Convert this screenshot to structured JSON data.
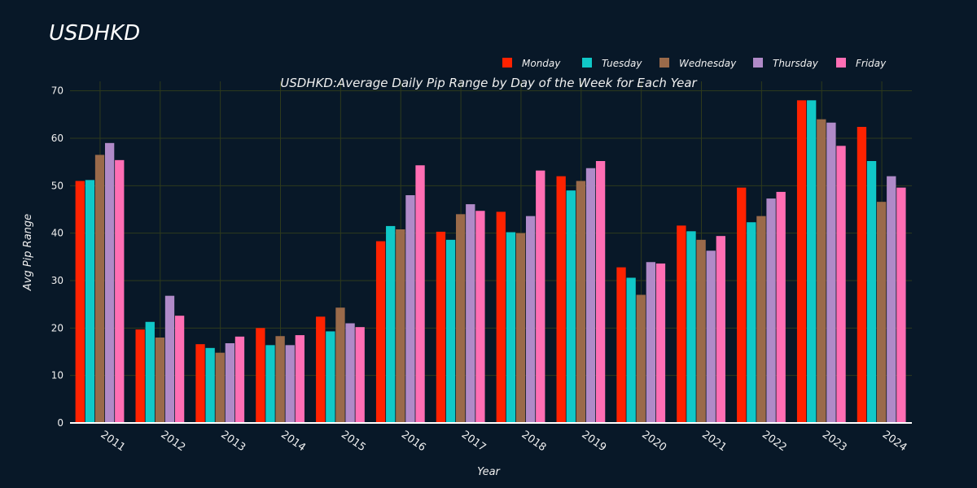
{
  "page": {
    "title": "USDHKD"
  },
  "colors": {
    "background": "#081828",
    "grid": "#2e3a1c",
    "axis_line": "#ffffff",
    "text": "#f0f0f0"
  },
  "chart_data": {
    "type": "bar",
    "title": "USDHKD:Average Daily Pip Range by Day of the Week for Each Year",
    "xlabel": "Year",
    "ylabel": "Avg Pip Range",
    "ylim": [
      0,
      72
    ],
    "yticks": [
      0,
      10,
      20,
      30,
      40,
      50,
      60,
      70
    ],
    "grid": true,
    "legend_position": "top-right",
    "categories": [
      "2011",
      "2012",
      "2013",
      "2014",
      "2015",
      "2016",
      "2017",
      "2018",
      "2019",
      "2020",
      "2021",
      "2022",
      "2023",
      "2024"
    ],
    "series": [
      {
        "name": "Monday",
        "color": "#ff2200",
        "values": [
          51.0,
          19.7,
          16.6,
          20.0,
          22.4,
          38.3,
          40.3,
          44.5,
          52.0,
          32.8,
          41.6,
          49.6,
          68.0,
          62.4
        ]
      },
      {
        "name": "Tuesday",
        "color": "#10c8c8",
        "values": [
          51.2,
          21.3,
          15.8,
          16.4,
          19.3,
          41.5,
          38.6,
          40.2,
          49.0,
          30.6,
          40.4,
          42.3,
          68.0,
          55.2
        ]
      },
      {
        "name": "Wednesday",
        "color": "#9a6a4a",
        "values": [
          56.5,
          18.0,
          14.8,
          18.3,
          24.3,
          40.8,
          44.0,
          40.0,
          51.0,
          27.0,
          38.6,
          43.6,
          64.0,
          46.6
        ]
      },
      {
        "name": "Thursday",
        "color": "#b08ac8",
        "values": [
          59.0,
          26.8,
          16.8,
          16.4,
          21.0,
          48.0,
          46.1,
          43.6,
          53.7,
          33.9,
          36.3,
          47.3,
          63.3,
          52.0
        ]
      },
      {
        "name": "Friday",
        "color": "#ff6eb4",
        "values": [
          55.4,
          22.6,
          18.2,
          18.5,
          20.2,
          54.3,
          44.7,
          53.2,
          55.2,
          33.6,
          39.4,
          48.7,
          58.4,
          49.6
        ]
      }
    ]
  }
}
